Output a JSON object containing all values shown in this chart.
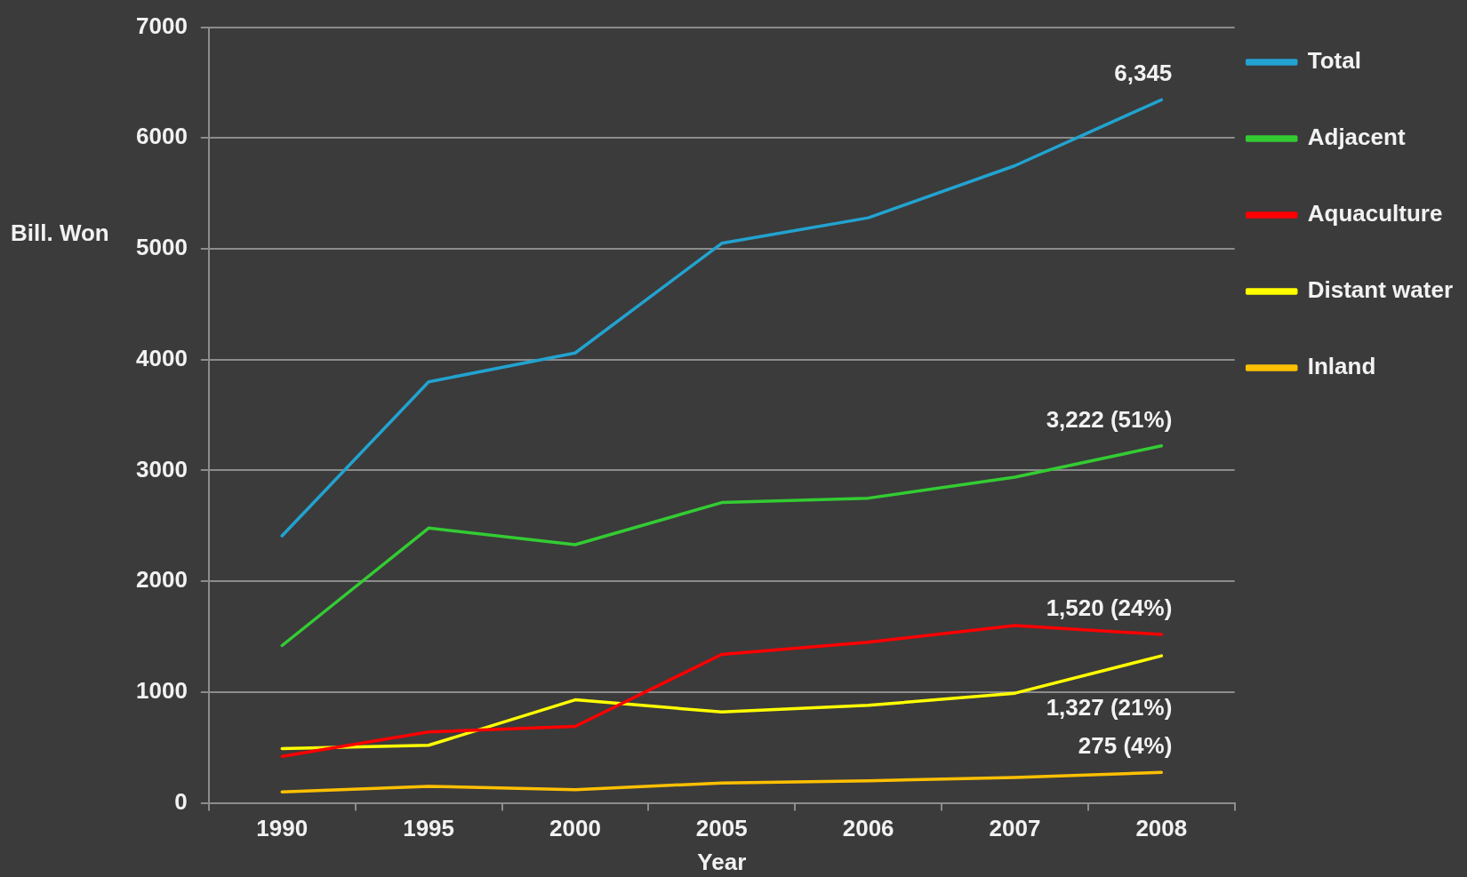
{
  "chart_data": {
    "type": "line",
    "xlabel": "Year",
    "ylabel": "Bill. Won",
    "categories": [
      "1990",
      "1995",
      "2000",
      "2005",
      "2006",
      "2007",
      "2008"
    ],
    "ylim": [
      0,
      7000
    ],
    "yticks": [
      0,
      1000,
      2000,
      3000,
      4000,
      5000,
      6000,
      7000
    ],
    "grid": "y",
    "legend": "top right",
    "marker": "none",
    "line_style": "solid",
    "series": [
      {
        "name": "Total",
        "color": "#22a3d0",
        "values": [
          2410,
          3800,
          4060,
          5050,
          5280,
          5750,
          6345
        ],
        "value_labels": [
          null,
          null,
          null,
          null,
          null,
          null,
          "6,345"
        ]
      },
      {
        "name": "Adjacent",
        "color": "#33cc33",
        "values": [
          1420,
          2480,
          2330,
          2710,
          2750,
          2940,
          3222
        ],
        "value_labels": [
          null,
          null,
          null,
          null,
          null,
          null,
          "3,222 (51%)"
        ]
      },
      {
        "name": "Aquaculture",
        "color": "#ff0000",
        "values": [
          420,
          640,
          690,
          1340,
          1450,
          1600,
          1520
        ],
        "value_labels": [
          null,
          null,
          null,
          null,
          null,
          null,
          "1,520 (24%)"
        ]
      },
      {
        "name": "Distant water",
        "color": "#ffff00",
        "values": [
          490,
          520,
          930,
          820,
          880,
          990,
          1327
        ],
        "value_labels": [
          null,
          null,
          null,
          null,
          null,
          null,
          "1,327 (21%)"
        ]
      },
      {
        "name": "Inland",
        "color": "#ffc000",
        "values": [
          100,
          150,
          120,
          180,
          200,
          230,
          275
        ],
        "value_labels": [
          null,
          null,
          null,
          null,
          null,
          null,
          "275 (4%)"
        ]
      }
    ]
  }
}
